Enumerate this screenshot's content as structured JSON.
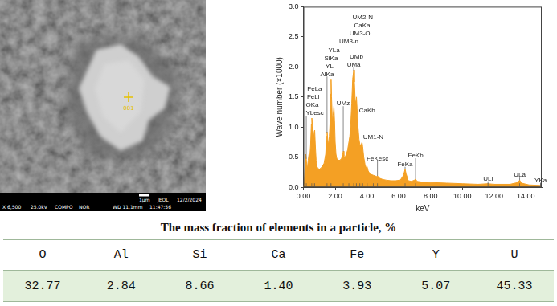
{
  "image": {
    "marker_label": "001",
    "scale_bar": "1μm",
    "maker": "JEOL",
    "date": "12/2/2024",
    "info_bar": [
      "X 6,500",
      "25.0kV",
      "COMPO",
      "NOR",
      "WD 11.1mm",
      "11:47:56"
    ]
  },
  "chart_data": {
    "type": "area",
    "x_label": "keV",
    "y_label": "Wave number (×1000)",
    "color": "#f4a024",
    "x": [
      0,
      0.05,
      0.1,
      0.15,
      0.2,
      0.25,
      0.3,
      0.35,
      0.4,
      0.45,
      0.5,
      0.53,
      0.56,
      0.6,
      0.64,
      0.68,
      0.71,
      0.75,
      0.8,
      0.85,
      0.9,
      1,
      1.1,
      1.2,
      1.3,
      1.4,
      1.46,
      1.49,
      1.53,
      1.58,
      1.63,
      1.68,
      1.72,
      1.74,
      1.77,
      1.82,
      1.87,
      1.92,
      1.96,
      2,
      2.05,
      2.1,
      2.2,
      2.3,
      2.4,
      2.47,
      2.51,
      2.55,
      2.62,
      2.7,
      2.78,
      2.86,
      2.92,
      2.98,
      3.04,
      3.1,
      3.17,
      3.21,
      3.26,
      3.3,
      3.34,
      3.38,
      3.44,
      3.5,
      3.55,
      3.6,
      3.65,
      3.69,
      3.73,
      3.8,
      3.88,
      3.95,
      4.01,
      4.08,
      4.2,
      4.4,
      4.6,
      4.66,
      4.8,
      5,
      5.2,
      5.5,
      5.8,
      6.1,
      6.3,
      6.4,
      6.47,
      6.6,
      6.8,
      7,
      7.06,
      7.15,
      7.4,
      8,
      9,
      10,
      11,
      11.62,
      12,
      13,
      13.5,
      13.61,
      13.72,
      14.2,
      15
    ],
    "values": [
      0,
      0.05,
      0.35,
      0.55,
      0.42,
      0.3,
      0.45,
      0.55,
      0.5,
      0.7,
      1.05,
      1.15,
      1.05,
      0.95,
      0.88,
      0.92,
      0.95,
      0.7,
      0.45,
      0.35,
      0.32,
      0.3,
      0.32,
      0.35,
      0.4,
      0.55,
      0.85,
      0.92,
      0.8,
      0.7,
      0.85,
      1.1,
      1.55,
      1.8,
      1.5,
      1.1,
      1.2,
      1.35,
      1.1,
      0.75,
      0.55,
      0.48,
      0.45,
      0.45,
      0.48,
      0.55,
      0.6,
      0.52,
      0.5,
      0.55,
      0.62,
      0.75,
      0.85,
      1.05,
      1.4,
      1.8,
      1.95,
      1.75,
      1.45,
      1.4,
      1.5,
      1.3,
      1,
      0.8,
      0.72,
      0.7,
      0.72,
      0.75,
      0.68,
      0.5,
      0.38,
      0.32,
      0.34,
      0.27,
      0.22,
      0.2,
      0.18,
      0.19,
      0.15,
      0.13,
      0.12,
      0.11,
      0.11,
      0.12,
      0.2,
      0.3,
      0.22,
      0.11,
      0.1,
      0.12,
      0.14,
      0.1,
      0.09,
      0.08,
      0.07,
      0.06,
      0.05,
      0.06,
      0.05,
      0.05,
      0.08,
      0.12,
      0.07,
      0.04,
      0.03
    ],
    "xlim": [
      0,
      15
    ],
    "xticks": [
      {
        "value": 0,
        "label": "0.00"
      },
      {
        "value": 2,
        "label": "2.00"
      },
      {
        "value": 4,
        "label": "4.00"
      },
      {
        "value": 6,
        "label": "6.00"
      },
      {
        "value": 8,
        "label": "8.00"
      },
      {
        "value": 10,
        "label": "10.00"
      },
      {
        "value": 12,
        "label": "12.00"
      },
      {
        "value": 14,
        "label": "14.00"
      }
    ],
    "ylim": [
      0,
      3
    ],
    "yticks": [
      {
        "value": 0,
        "label": "0.0"
      },
      {
        "value": 0.5,
        "label": "0.5"
      },
      {
        "value": 1,
        "label": "1.0"
      },
      {
        "value": 1.5,
        "label": "1.5"
      },
      {
        "value": 2,
        "label": "2.0"
      },
      {
        "value": 2.5,
        "label": "2.5"
      },
      {
        "value": 3,
        "label": "3.0"
      }
    ],
    "grid": false,
    "peaks": [
      {
        "label": "YLesc",
        "x": 0.18
      },
      {
        "label": "OKa",
        "x": 0.525
      },
      {
        "label": "FeLl",
        "x": 0.615
      },
      {
        "label": "FeLa",
        "x": 0.705
      },
      {
        "label": "AlKa",
        "x": 1.486
      },
      {
        "label": "YLl",
        "x": 1.686
      },
      {
        "label": "SiKa",
        "x": 1.739
      },
      {
        "label": "YLa",
        "x": 1.922
      },
      {
        "label": "UMz",
        "x": 2.507
      },
      {
        "label": "UM3-n",
        "x": 2.86
      },
      {
        "label": "UMa",
        "x": 3.165
      },
      {
        "label": "UMb",
        "x": 3.336
      },
      {
        "label": "UM3-O",
        "x": 3.55
      },
      {
        "label": "CaKa",
        "x": 3.69
      },
      {
        "label": "UM2-N",
        "x": 3.73
      },
      {
        "label": "CaKb",
        "x": 4.01
      },
      {
        "label": "UM1-N",
        "x": 4.4
      },
      {
        "label": "FeKesc",
        "x": 4.66
      },
      {
        "label": "FeKa",
        "x": 6.4
      },
      {
        "label": "FeKb",
        "x": 7.06
      },
      {
        "label": "ULl",
        "x": 11.62
      },
      {
        "label": "ULa",
        "x": 13.61
      },
      {
        "label": "YKa",
        "x": 14.93
      }
    ]
  },
  "table": {
    "title": "The mass fraction of elements in a particle, %",
    "header": [
      "O",
      "Al",
      "Si",
      "Ca",
      "Fe",
      "Y",
      "U"
    ],
    "rows": [
      [
        "32.77",
        "2.84",
        "8.66",
        "1.40",
        "3.93",
        "5.07",
        "45.33"
      ]
    ]
  }
}
